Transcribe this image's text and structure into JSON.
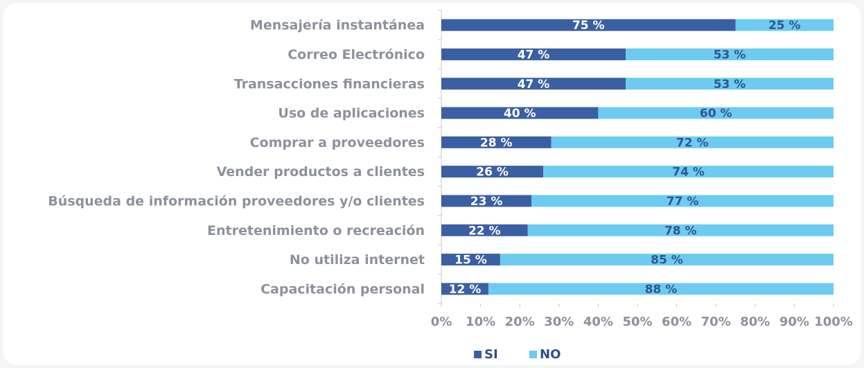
{
  "chart_data": {
    "type": "stacked_bar_horizontal",
    "categories": [
      "Mensajería instantánea",
      "Correo Electrónico",
      "Transacciones financieras",
      "Uso de aplicaciones",
      "Comprar a proveedores",
      "Vender productos a clientes",
      "Búsqueda de información proveedores y/o clientes",
      "Entretenimiento o recreación",
      "No utiliza internet",
      "Capacitación personal"
    ],
    "series": [
      {
        "name": "SI",
        "color": "#3a5fa3",
        "values": [
          75,
          47,
          47,
          40,
          28,
          26,
          23,
          22,
          15,
          12
        ],
        "value_labels": [
          "75 %",
          "47 %",
          "47 %",
          "40 %",
          "28 %",
          "26 %",
          "23 %",
          "22 %",
          "15 %",
          "12 %"
        ]
      },
      {
        "name": "NO",
        "color": "#6dcbf0",
        "values": [
          25,
          53,
          53,
          60,
          72,
          74,
          77,
          78,
          85,
          88
        ],
        "value_labels": [
          "25 %",
          "53 %",
          "53 %",
          "60 %",
          "72 %",
          "74 %",
          "77 %",
          "78 %",
          "85 %",
          "88 %"
        ]
      }
    ],
    "xlim": [
      0,
      100
    ],
    "xticks": [
      {
        "value": 0,
        "label": "0%"
      },
      {
        "value": 10,
        "label": "10%"
      },
      {
        "value": 20,
        "label": "20%"
      },
      {
        "value": 30,
        "label": "30%"
      },
      {
        "value": 40,
        "label": "40%"
      },
      {
        "value": 50,
        "label": "50%"
      },
      {
        "value": 60,
        "label": "60%"
      },
      {
        "value": 70,
        "label": "70%"
      },
      {
        "value": 80,
        "label": "80%"
      },
      {
        "value": 90,
        "label": "90%"
      },
      {
        "value": 100,
        "label": "100%"
      }
    ],
    "legend": "bottom"
  }
}
